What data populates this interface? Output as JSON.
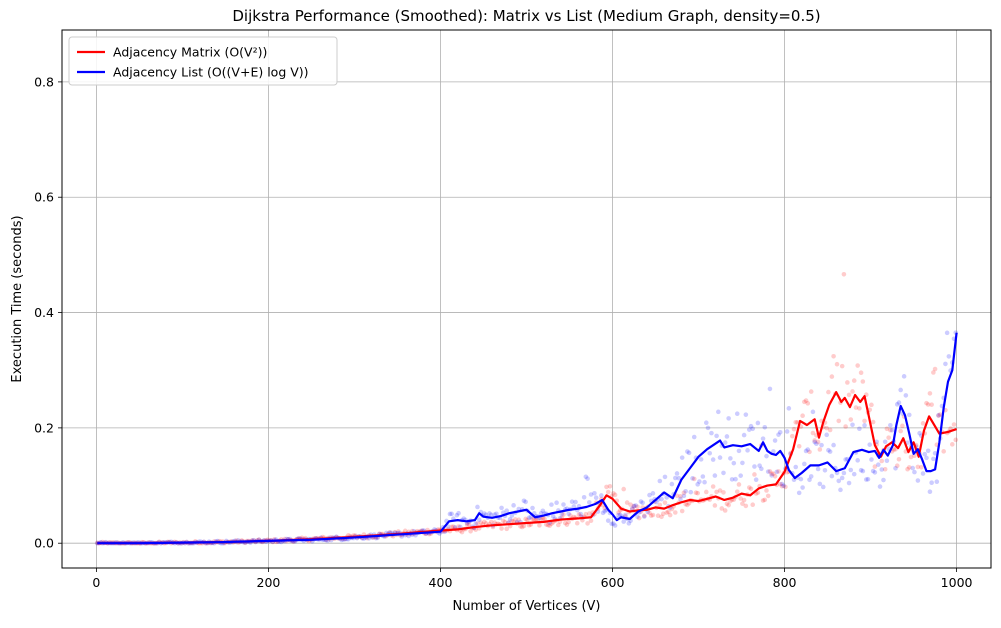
{
  "chart_data": {
    "type": "line",
    "title": "Dijkstra Performance (Smoothed): Matrix vs List (Medium Graph, density=0.5)",
    "xlabel": "Number of Vertices (V)",
    "ylabel": "Execution Time (seconds)",
    "xlim": [
      -40,
      1040
    ],
    "ylim": [
      -0.043,
      0.89
    ],
    "x_ticks": [
      0,
      200,
      400,
      600,
      800,
      1000
    ],
    "y_ticks": [
      0.0,
      0.2,
      0.4,
      0.6,
      0.8
    ],
    "y_tick_labels": [
      "0.0",
      "0.2",
      "0.4",
      "0.6",
      "0.8"
    ],
    "grid": true,
    "legend_position": "upper left",
    "series": [
      {
        "name": "Adjacency Matrix (O(V²))",
        "color": "#ff0000",
        "points": [
          [
            1,
            0.0
          ],
          [
            50,
            0.0
          ],
          [
            100,
            0.001
          ],
          [
            150,
            0.002
          ],
          [
            200,
            0.004
          ],
          [
            250,
            0.007
          ],
          [
            300,
            0.011
          ],
          [
            350,
            0.016
          ],
          [
            400,
            0.022
          ],
          [
            420,
            0.024
          ],
          [
            440,
            0.028
          ],
          [
            460,
            0.031
          ],
          [
            480,
            0.033
          ],
          [
            500,
            0.035
          ],
          [
            520,
            0.037
          ],
          [
            540,
            0.041
          ],
          [
            560,
            0.043
          ],
          [
            575,
            0.045
          ],
          [
            585,
            0.065
          ],
          [
            593,
            0.083
          ],
          [
            600,
            0.077
          ],
          [
            610,
            0.06
          ],
          [
            620,
            0.055
          ],
          [
            630,
            0.057
          ],
          [
            640,
            0.058
          ],
          [
            650,
            0.062
          ],
          [
            660,
            0.06
          ],
          [
            670,
            0.066
          ],
          [
            680,
            0.071
          ],
          [
            690,
            0.075
          ],
          [
            700,
            0.073
          ],
          [
            710,
            0.077
          ],
          [
            720,
            0.081
          ],
          [
            730,
            0.075
          ],
          [
            740,
            0.079
          ],
          [
            750,
            0.086
          ],
          [
            760,
            0.083
          ],
          [
            770,
            0.095
          ],
          [
            780,
            0.1
          ],
          [
            790,
            0.102
          ],
          [
            800,
            0.124
          ],
          [
            810,
            0.163
          ],
          [
            818,
            0.212
          ],
          [
            826,
            0.205
          ],
          [
            835,
            0.215
          ],
          [
            840,
            0.183
          ],
          [
            845,
            0.21
          ],
          [
            852,
            0.24
          ],
          [
            860,
            0.262
          ],
          [
            866,
            0.245
          ],
          [
            870,
            0.252
          ],
          [
            876,
            0.236
          ],
          [
            882,
            0.257
          ],
          [
            888,
            0.245
          ],
          [
            893,
            0.255
          ],
          [
            898,
            0.22
          ],
          [
            905,
            0.17
          ],
          [
            912,
            0.15
          ],
          [
            918,
            0.168
          ],
          [
            925,
            0.175
          ],
          [
            932,
            0.165
          ],
          [
            938,
            0.182
          ],
          [
            944,
            0.158
          ],
          [
            950,
            0.175
          ],
          [
            956,
            0.15
          ],
          [
            962,
            0.195
          ],
          [
            968,
            0.22
          ],
          [
            974,
            0.205
          ],
          [
            980,
            0.19
          ],
          [
            990,
            0.193
          ],
          [
            1000,
            0.198
          ]
        ]
      },
      {
        "name": "Adjacency List (O((V+E) log V))",
        "color": "#0000ff",
        "points": [
          [
            1,
            0.0
          ],
          [
            50,
            0.0
          ],
          [
            100,
            0.001
          ],
          [
            150,
            0.002
          ],
          [
            200,
            0.004
          ],
          [
            250,
            0.006
          ],
          [
            300,
            0.01
          ],
          [
            350,
            0.015
          ],
          [
            400,
            0.02
          ],
          [
            410,
            0.038
          ],
          [
            420,
            0.04
          ],
          [
            430,
            0.038
          ],
          [
            440,
            0.04
          ],
          [
            445,
            0.052
          ],
          [
            450,
            0.046
          ],
          [
            460,
            0.044
          ],
          [
            470,
            0.047
          ],
          [
            480,
            0.052
          ],
          [
            490,
            0.055
          ],
          [
            500,
            0.058
          ],
          [
            510,
            0.045
          ],
          [
            520,
            0.048
          ],
          [
            530,
            0.052
          ],
          [
            540,
            0.055
          ],
          [
            550,
            0.058
          ],
          [
            560,
            0.06
          ],
          [
            570,
            0.063
          ],
          [
            580,
            0.068
          ],
          [
            588,
            0.075
          ],
          [
            595,
            0.058
          ],
          [
            600,
            0.05
          ],
          [
            605,
            0.04
          ],
          [
            610,
            0.045
          ],
          [
            620,
            0.042
          ],
          [
            630,
            0.055
          ],
          [
            640,
            0.062
          ],
          [
            650,
            0.075
          ],
          [
            660,
            0.088
          ],
          [
            670,
            0.078
          ],
          [
            680,
            0.11
          ],
          [
            690,
            0.13
          ],
          [
            700,
            0.15
          ],
          [
            710,
            0.163
          ],
          [
            720,
            0.173
          ],
          [
            725,
            0.178
          ],
          [
            730,
            0.166
          ],
          [
            740,
            0.17
          ],
          [
            750,
            0.168
          ],
          [
            760,
            0.172
          ],
          [
            770,
            0.16
          ],
          [
            775,
            0.175
          ],
          [
            780,
            0.16
          ],
          [
            785,
            0.155
          ],
          [
            790,
            0.153
          ],
          [
            795,
            0.16
          ],
          [
            800,
            0.148
          ],
          [
            805,
            0.127
          ],
          [
            812,
            0.113
          ],
          [
            820,
            0.122
          ],
          [
            830,
            0.135
          ],
          [
            840,
            0.135
          ],
          [
            850,
            0.14
          ],
          [
            860,
            0.125
          ],
          [
            870,
            0.13
          ],
          [
            880,
            0.158
          ],
          [
            890,
            0.162
          ],
          [
            898,
            0.158
          ],
          [
            905,
            0.16
          ],
          [
            910,
            0.148
          ],
          [
            915,
            0.162
          ],
          [
            920,
            0.152
          ],
          [
            926,
            0.17
          ],
          [
            930,
            0.205
          ],
          [
            935,
            0.238
          ],
          [
            940,
            0.222
          ],
          [
            945,
            0.19
          ],
          [
            950,
            0.155
          ],
          [
            955,
            0.163
          ],
          [
            960,
            0.145
          ],
          [
            965,
            0.125
          ],
          [
            970,
            0.125
          ],
          [
            975,
            0.128
          ],
          [
            980,
            0.175
          ],
          [
            985,
            0.235
          ],
          [
            990,
            0.28
          ],
          [
            995,
            0.3
          ],
          [
            1000,
            0.365
          ]
        ]
      }
    ]
  }
}
